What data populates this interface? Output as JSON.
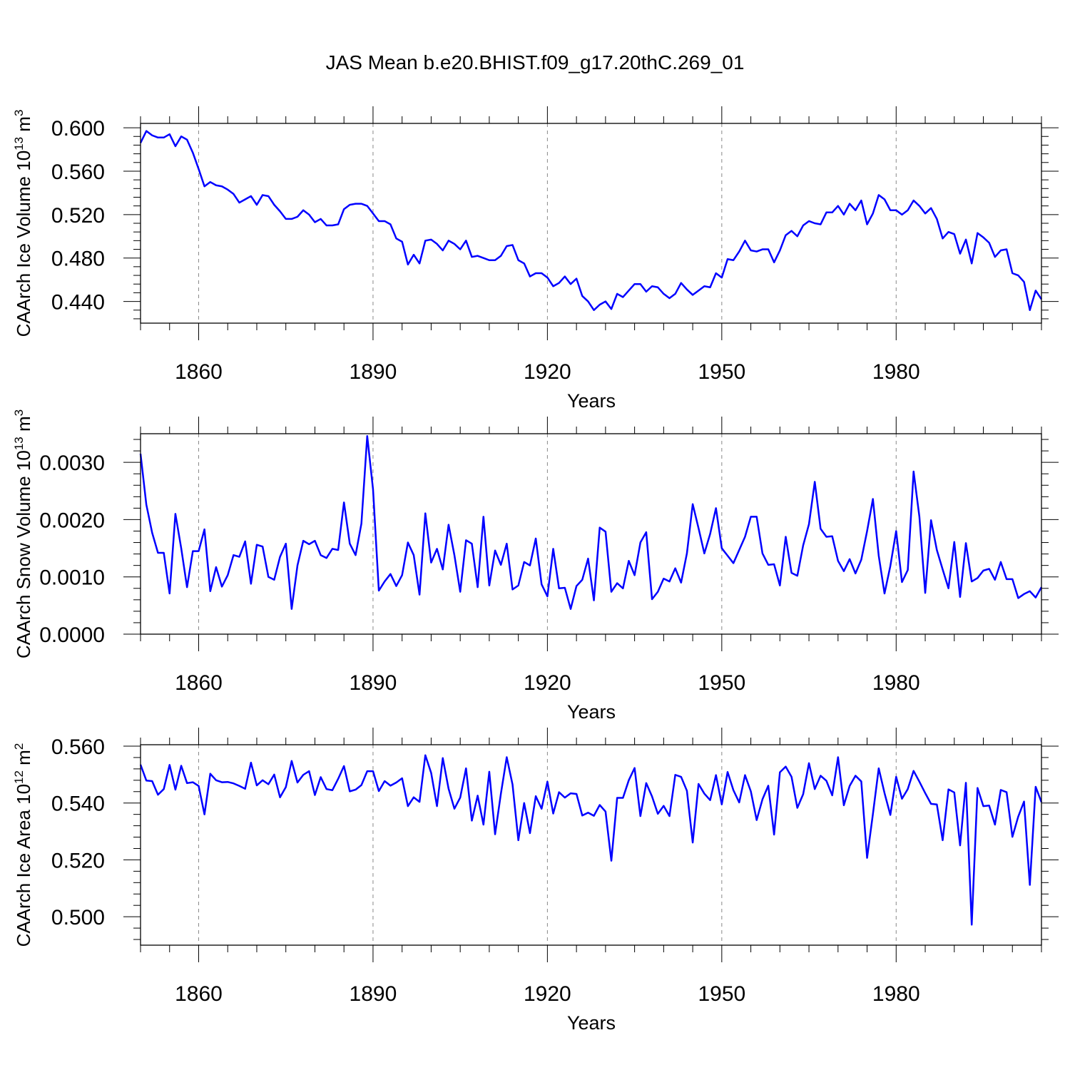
{
  "title": "JAS Mean b.e20.BHIST.f09_g17.20thC.269_01",
  "chart_data": [
    {
      "type": "line",
      "xlabel": "Years",
      "ylabel": "CAArch Ice Volume 10",
      "ylabel_exp": "13",
      "ylabel_unit": " m",
      "ylabel_unit_exp": "3",
      "xlim": [
        1850,
        2005
      ],
      "ylim": [
        0.42,
        0.604
      ],
      "xticks": [
        1860,
        1890,
        1920,
        1950,
        1980
      ],
      "xtick_labels": [
        "1860",
        "1890",
        "1920",
        "1950",
        "1980"
      ],
      "yticks": [
        0.44,
        0.48,
        0.52,
        0.56,
        0.6
      ],
      "ytick_labels": [
        "0.440",
        "0.480",
        "0.520",
        "0.560",
        "0.600"
      ],
      "grid": "vertical dashed at major x ticks",
      "color": "#0000ff",
      "x_start": 1850,
      "values": [
        0.586,
        0.597,
        0.593,
        0.591,
        0.591,
        0.594,
        0.583,
        0.592,
        0.589,
        0.577,
        0.562,
        0.546,
        0.55,
        0.547,
        0.546,
        0.543,
        0.539,
        0.531,
        0.534,
        0.537,
        0.529,
        0.538,
        0.537,
        0.529,
        0.523,
        0.516,
        0.516,
        0.518,
        0.524,
        0.52,
        0.513,
        0.516,
        0.51,
        0.51,
        0.511,
        0.525,
        0.529,
        0.53,
        0.53,
        0.528,
        0.521,
        0.514,
        0.514,
        0.511,
        0.498,
        0.495,
        0.474,
        0.483,
        0.475,
        0.496,
        0.497,
        0.493,
        0.487,
        0.496,
        0.493,
        0.488,
        0.496,
        0.481,
        0.482,
        0.48,
        0.478,
        0.478,
        0.482,
        0.491,
        0.492,
        0.478,
        0.475,
        0.463,
        0.466,
        0.466,
        0.462,
        0.454,
        0.457,
        0.463,
        0.456,
        0.461,
        0.445,
        0.44,
        0.432,
        0.437,
        0.44,
        0.433,
        0.447,
        0.444,
        0.45,
        0.456,
        0.456,
        0.449,
        0.454,
        0.453,
        0.447,
        0.443,
        0.447,
        0.457,
        0.451,
        0.446,
        0.45,
        0.454,
        0.453,
        0.466,
        0.462,
        0.479,
        0.478,
        0.486,
        0.496,
        0.487,
        0.486,
        0.488,
        0.488,
        0.476,
        0.487,
        0.501,
        0.505,
        0.5,
        0.51,
        0.514,
        0.512,
        0.511,
        0.522,
        0.522,
        0.528,
        0.52,
        0.53,
        0.524,
        0.533,
        0.511,
        0.521,
        0.538,
        0.534,
        0.524,
        0.524,
        0.52,
        0.524,
        0.533,
        0.528,
        0.521,
        0.526,
        0.516,
        0.498,
        0.504,
        0.502,
        0.484,
        0.497,
        0.475,
        0.503,
        0.499,
        0.494,
        0.481,
        0.487,
        0.488,
        0.466,
        0.464,
        0.458,
        0.432,
        0.45,
        0.442
      ]
    },
    {
      "type": "line",
      "xlabel": "Years",
      "ylabel": "CAArch Snow Volume 10",
      "ylabel_exp": "13",
      "ylabel_unit": " m",
      "ylabel_unit_exp": "3",
      "xlim": [
        1850,
        2005
      ],
      "ylim": [
        0.0,
        0.0035
      ],
      "xticks": [
        1860,
        1890,
        1920,
        1950,
        1980
      ],
      "xtick_labels": [
        "1860",
        "1890",
        "1920",
        "1950",
        "1980"
      ],
      "yticks": [
        0.0,
        0.001,
        0.002,
        0.003
      ],
      "ytick_labels": [
        "0.0000",
        "0.0010",
        "0.0020",
        "0.0030"
      ],
      "grid": "vertical dashed at major x ticks",
      "color": "#0000ff",
      "x_start": 1850,
      "values": [
        0.00315,
        0.00226,
        0.00177,
        0.00142,
        0.00142,
        0.00071,
        0.0021,
        0.0015,
        0.00082,
        0.00145,
        0.00145,
        0.00183,
        0.00075,
        0.00117,
        0.00083,
        0.00103,
        0.00138,
        0.00135,
        0.00162,
        0.00088,
        0.00156,
        0.00153,
        0.001,
        0.00095,
        0.00135,
        0.00158,
        0.00044,
        0.0012,
        0.00163,
        0.00157,
        0.00163,
        0.00138,
        0.00133,
        0.00149,
        0.00147,
        0.0023,
        0.00158,
        0.00138,
        0.00193,
        0.00346,
        0.00253,
        0.00076,
        0.00092,
        0.00105,
        0.00084,
        0.00103,
        0.0016,
        0.00138,
        0.00069,
        0.00211,
        0.00125,
        0.00149,
        0.00113,
        0.00191,
        0.00138,
        0.00074,
        0.00164,
        0.00158,
        0.00082,
        0.00205,
        0.00085,
        0.00146,
        0.00121,
        0.00158,
        0.00078,
        0.00085,
        0.00126,
        0.0012,
        0.00167,
        0.00087,
        0.00066,
        0.00149,
        0.0008,
        0.00081,
        0.00044,
        0.00084,
        0.00095,
        0.00132,
        0.00059,
        0.00186,
        0.00179,
        0.00074,
        0.00089,
        0.0008,
        0.00128,
        0.00103,
        0.0016,
        0.00178,
        0.00061,
        0.00074,
        0.00097,
        0.00092,
        0.00115,
        0.0009,
        0.00141,
        0.00227,
        0.00185,
        0.00141,
        0.00175,
        0.0022,
        0.0015,
        0.00137,
        0.00124,
        0.00147,
        0.0017,
        0.00205,
        0.00205,
        0.00141,
        0.00121,
        0.00122,
        0.00085,
        0.0017,
        0.00107,
        0.00102,
        0.00155,
        0.00192,
        0.00266,
        0.00184,
        0.0017,
        0.00171,
        0.00128,
        0.0011,
        0.00131,
        0.00106,
        0.0013,
        0.0018,
        0.00236,
        0.00137,
        0.00071,
        0.00119,
        0.0018,
        0.00091,
        0.00112,
        0.00284,
        0.00205,
        0.00072,
        0.00199,
        0.00147,
        0.00113,
        0.0008,
        0.00161,
        0.00065,
        0.00159,
        0.00092,
        0.00098,
        0.00111,
        0.00114,
        0.00095,
        0.00126,
        0.00096,
        0.00096,
        0.00063,
        0.0007,
        0.00075,
        0.00064,
        0.00082
      ]
    },
    {
      "type": "line",
      "xlabel": "Years",
      "ylabel": "CAArch Ice Area 10",
      "ylabel_exp": "12",
      "ylabel_unit": " m",
      "ylabel_unit_exp": "2",
      "xlim": [
        1850,
        2005
      ],
      "ylim": [
        0.49,
        0.5605
      ],
      "xticks": [
        1860,
        1890,
        1920,
        1950,
        1980
      ],
      "xtick_labels": [
        "1860",
        "1890",
        "1920",
        "1950",
        "1980"
      ],
      "yticks": [
        0.5,
        0.52,
        0.54,
        0.56
      ],
      "ytick_labels": [
        "0.500",
        "0.520",
        "0.540",
        "0.560"
      ],
      "grid": "vertical dashed at major x ticks",
      "color": "#0000ff",
      "x_start": 1850,
      "values": [
        0.5535,
        0.5479,
        0.5477,
        0.5429,
        0.5449,
        0.5534,
        0.5447,
        0.5531,
        0.547,
        0.5473,
        0.546,
        0.536,
        0.5503,
        0.548,
        0.5473,
        0.5474,
        0.5469,
        0.546,
        0.545,
        0.5542,
        0.5462,
        0.548,
        0.5466,
        0.55,
        0.542,
        0.5456,
        0.5548,
        0.5472,
        0.5499,
        0.5512,
        0.5428,
        0.5491,
        0.5449,
        0.5445,
        0.5485,
        0.553,
        0.5441,
        0.5447,
        0.5463,
        0.5512,
        0.5512,
        0.5442,
        0.5477,
        0.5461,
        0.5472,
        0.5487,
        0.5389,
        0.542,
        0.5404,
        0.5568,
        0.5506,
        0.5389,
        0.5558,
        0.545,
        0.538,
        0.5419,
        0.5522,
        0.5338,
        0.5426,
        0.5324,
        0.551,
        0.529,
        0.5433,
        0.5561,
        0.5465,
        0.5269,
        0.54,
        0.5294,
        0.5424,
        0.538,
        0.5475,
        0.5363,
        0.5438,
        0.5419,
        0.5434,
        0.5432,
        0.5356,
        0.5366,
        0.5355,
        0.5393,
        0.537,
        0.5197,
        0.5418,
        0.5418,
        0.548,
        0.5523,
        0.5354,
        0.547,
        0.5423,
        0.5362,
        0.539,
        0.5354,
        0.5499,
        0.5492,
        0.5443,
        0.5261,
        0.5467,
        0.5433,
        0.541,
        0.5498,
        0.5395,
        0.5509,
        0.5445,
        0.5402,
        0.5498,
        0.5441,
        0.534,
        0.5413,
        0.5461,
        0.5289,
        0.5508,
        0.5528,
        0.5492,
        0.5383,
        0.5431,
        0.554,
        0.5449,
        0.5496,
        0.5478,
        0.5427,
        0.5561,
        0.5392,
        0.546,
        0.5496,
        0.5476,
        0.5207,
        0.5361,
        0.5522,
        0.5435,
        0.5358,
        0.5492,
        0.5415,
        0.5449,
        0.5513,
        0.5475,
        0.5435,
        0.5397,
        0.5395,
        0.5269,
        0.5448,
        0.5437,
        0.5251,
        0.5471,
        0.4972,
        0.5453,
        0.5389,
        0.5391,
        0.5324,
        0.5446,
        0.5438,
        0.5281,
        0.5352,
        0.5405,
        0.5112,
        0.5457,
        0.5403
      ]
    }
  ]
}
